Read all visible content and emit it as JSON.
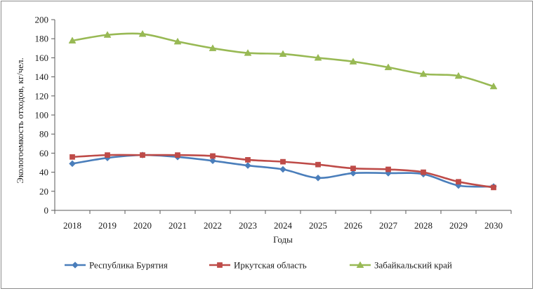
{
  "chart_data": {
    "type": "line",
    "title": "",
    "xlabel": "Годы",
    "ylabel": "Экологоемкость отходов, кг/чел.",
    "categories": [
      "2018",
      "2019",
      "2020",
      "2021",
      "2022",
      "2023",
      "2024",
      "2025",
      "2026",
      "2027",
      "2028",
      "2029",
      "2030"
    ],
    "ylim": [
      0,
      200
    ],
    "yticks": [
      0,
      20,
      40,
      60,
      80,
      100,
      120,
      140,
      160,
      180,
      200
    ],
    "grid": false,
    "legend_position": "bottom",
    "series": [
      {
        "name": "Республика Бурятия",
        "color": "#4a7ebb",
        "marker": "diamond",
        "values": [
          49,
          55,
          58,
          56,
          52,
          47,
          43,
          34,
          39,
          39,
          38,
          26,
          25
        ]
      },
      {
        "name": "Иркутская область",
        "color": "#be4b48",
        "marker": "square",
        "values": [
          56,
          58,
          58,
          58,
          57,
          53,
          51,
          48,
          44,
          43,
          40,
          30,
          24
        ]
      },
      {
        "name": "Забайкальский край",
        "color": "#98b954",
        "marker": "triangle",
        "values": [
          178,
          184,
          185,
          177,
          170,
          165,
          164,
          160,
          156,
          150,
          143,
          141,
          130
        ]
      }
    ]
  }
}
